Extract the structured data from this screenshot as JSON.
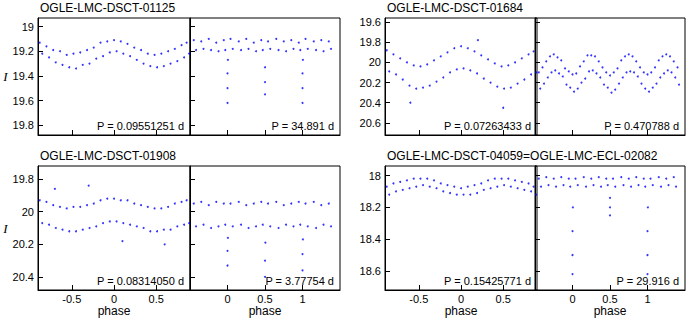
{
  "chart_data": [
    {
      "type": "scatter",
      "title": "OGLE-LMC-DSCT-01125",
      "y_label": "I",
      "color": "#0000ff",
      "marker": "dot",
      "ylim": [
        19.88,
        18.93
      ],
      "yticks": [
        19,
        19.2,
        19.4,
        19.6,
        19.8
      ],
      "plots": [
        {
          "xlim": [
            -0.9,
            0.9
          ],
          "xticks": [
            -0.5,
            0,
            0.5
          ],
          "tick_labels": "y",
          "annotation": "P = 0.09551251 d",
          "x": [
            -0.88,
            -0.85,
            -0.8,
            -0.77,
            -0.72,
            -0.69,
            -0.64,
            -0.61,
            -0.56,
            -0.53,
            -0.48,
            -0.45,
            -0.4,
            -0.37,
            -0.32,
            -0.29,
            -0.24,
            -0.21,
            -0.16,
            -0.13,
            -0.08,
            -0.05,
            0,
            0.03,
            0.08,
            0.11,
            0.16,
            0.19,
            0.24,
            0.27,
            0.32,
            0.35,
            0.4,
            0.43,
            0.48,
            0.51,
            0.56,
            0.59,
            0.64,
            0.67,
            0.72,
            0.75,
            0.8,
            0.83,
            0.86,
            0.89
          ],
          "values": [
            19.13,
            19.22,
            19.16,
            19.25,
            19.19,
            19.29,
            19.2,
            19.31,
            19.23,
            19.33,
            19.22,
            19.34,
            19.21,
            19.31,
            19.19,
            19.3,
            19.17,
            19.26,
            19.13,
            19.24,
            19.12,
            19.21,
            19.11,
            19.2,
            19.12,
            19.22,
            19.14,
            19.24,
            19.17,
            19.27,
            19.19,
            19.3,
            19.22,
            19.32,
            19.23,
            19.33,
            19.22,
            19.32,
            19.2,
            19.3,
            19.18,
            19.28,
            19.15,
            19.25,
            19.13,
            19.22
          ]
        },
        {
          "xlim": [
            -0.5,
            1.5
          ],
          "xticks": [
            0,
            0.5,
            1
          ],
          "tick_labels": false,
          "annotation": "P = 34.891 d",
          "x": [
            -0.45,
            -0.42,
            -0.35,
            -0.32,
            -0.25,
            -0.22,
            -0.15,
            -0.12,
            -0.05,
            -0.03,
            0,
            0,
            0,
            0.005,
            0.04,
            0.07,
            0.15,
            0.18,
            0.25,
            0.28,
            0.35,
            0.38,
            0.45,
            0.47,
            0.5,
            0.5,
            0.5,
            0.54,
            0.57,
            0.65,
            0.68,
            0.75,
            0.78,
            0.85,
            0.88,
            0.95,
            0.97,
            1,
            1,
            1,
            1.005,
            1.04,
            1.07,
            1.15,
            1.18,
            1.25,
            1.28,
            1.35,
            1.38
          ],
          "values": [
            19.11,
            19.19,
            19.12,
            19.18,
            19.1,
            19.19,
            19.13,
            19.2,
            19.11,
            19.19,
            19.62,
            19.5,
            19.38,
            19.27,
            19.1,
            19.18,
            19.12,
            19.19,
            19.1,
            19.18,
            19.13,
            19.2,
            19.11,
            19.19,
            19.55,
            19.45,
            19.33,
            19.12,
            19.18,
            19.1,
            19.19,
            19.12,
            19.2,
            19.11,
            19.18,
            19.13,
            19.19,
            19.62,
            19.5,
            19.38,
            19.27,
            19.1,
            19.18,
            19.12,
            19.19,
            19.11,
            19.2,
            19.12,
            19.18
          ]
        }
      ]
    },
    {
      "type": "scatter",
      "title": "OGLE-LMC-DSCT-01684",
      "color": "#0000ff",
      "marker": "dot",
      "ylim": [
        20.72,
        19.56
      ],
      "yticks": [
        19.6,
        19.8,
        20,
        20.2,
        20.4,
        20.6
      ],
      "plots": [
        {
          "xlim": [
            -0.9,
            0.9
          ],
          "xticks": [
            -0.5,
            0,
            0.5
          ],
          "tick_labels": "y",
          "annotation": "P = 0.07263433 d",
          "x": [
            -0.88,
            -0.85,
            -0.8,
            -0.77,
            -0.72,
            -0.69,
            -0.64,
            -0.61,
            -0.56,
            -0.53,
            -0.48,
            -0.45,
            -0.4,
            -0.37,
            -0.32,
            -0.29,
            -0.24,
            -0.21,
            -0.16,
            -0.13,
            -0.08,
            -0.05,
            0,
            0.03,
            0.08,
            0.11,
            0.16,
            0.19,
            0.24,
            0.27,
            0.32,
            0.35,
            0.4,
            0.43,
            0.48,
            0.51,
            0.56,
            0.59,
            0.64,
            0.67,
            0.72,
            0.75,
            0.8,
            0.83,
            0.86,
            0.89,
            -0.6,
            0.2,
            0.5
          ],
          "values": [
            19.88,
            20.09,
            19.92,
            20.12,
            19.96,
            20.17,
            20,
            20.23,
            20.03,
            20.26,
            20.04,
            20.25,
            20.02,
            20.23,
            19.98,
            20.19,
            19.94,
            20.15,
            19.9,
            20.1,
            19.86,
            20.07,
            19.84,
            20.06,
            19.86,
            20.08,
            19.89,
            20.11,
            19.93,
            20.16,
            19.97,
            20.2,
            20.01,
            20.24,
            20.04,
            20.26,
            20.03,
            20.25,
            20,
            20.21,
            19.96,
            20.17,
            19.92,
            20.12,
            19.89,
            20.1,
            20.4,
            19.78,
            20.45
          ]
        },
        {
          "xlim": [
            -0.5,
            1.5
          ],
          "xticks": [
            0,
            0.5,
            1
          ],
          "tick_labels": false,
          "annotation": "P = 0.470788 d",
          "x": [
            -0.45,
            -0.43,
            -0.4,
            -0.38,
            -0.35,
            -0.33,
            -0.3,
            -0.28,
            -0.25,
            -0.23,
            -0.2,
            -0.18,
            -0.15,
            -0.13,
            -0.1,
            -0.08,
            -0.05,
            -0.03,
            0,
            0.02,
            0.05,
            0.07,
            0.1,
            0.12,
            0.15,
            0.17,
            0.2,
            0.22,
            0.25,
            0.27,
            0.3,
            0.32,
            0.35,
            0.37,
            0.4,
            0.42,
            0.45,
            0.47,
            0.5,
            0.52,
            0.55,
            0.57,
            0.6,
            0.62,
            0.65,
            0.67,
            0.7,
            0.72,
            0.75,
            0.77,
            0.8,
            0.82,
            0.85,
            0.87,
            0.9,
            0.92,
            0.95,
            0.97,
            1,
            1.02,
            1.05,
            1.07,
            1.1,
            1.12,
            1.15,
            1.17,
            1.2,
            1.22,
            1.25,
            1.27,
            1.3,
            1.32,
            1.35,
            1.37,
            1.4,
            1.42
          ],
          "values": [
            20.1,
            20.26,
            20.05,
            20.21,
            19.99,
            20.15,
            19.94,
            20.1,
            19.92,
            20.08,
            19.95,
            20.11,
            19.98,
            20.14,
            20.06,
            20.22,
            20.09,
            20.25,
            20.12,
            20.29,
            20.11,
            20.26,
            20.04,
            20.2,
            19.99,
            20.16,
            19.93,
            20.09,
            19.93,
            20.08,
            19.94,
            20.11,
            19.99,
            20.15,
            20.05,
            20.22,
            20.1,
            20.25,
            20.13,
            20.3,
            20.1,
            20.27,
            20.06,
            20.21,
            19.98,
            20.15,
            19.94,
            20.1,
            19.92,
            20.09,
            19.94,
            20.1,
            19.99,
            20.14,
            20.05,
            20.21,
            20.1,
            20.26,
            20.12,
            20.29,
            20.1,
            20.25,
            20.05,
            20.21,
            19.98,
            20.15,
            19.94,
            20.11,
            19.92,
            20.08,
            19.94,
            20.1,
            19.99,
            20.15,
            20.05,
            20.22
          ]
        }
      ]
    },
    {
      "type": "scatter",
      "title": "OGLE-LMC-DSCT-01908",
      "y_label": "I",
      "x_label": "phase",
      "color": "#0000ff",
      "marker": "dot",
      "ylim": [
        20.48,
        19.72
      ],
      "yticks": [
        19.8,
        20,
        20.2,
        20.4
      ],
      "plots": [
        {
          "xlim": [
            -0.9,
            0.9
          ],
          "xticks": [
            -0.5,
            0,
            0.5
          ],
          "tick_labels": true,
          "annotation": "P = 0.08314050 d",
          "x": [
            -0.88,
            -0.85,
            -0.8,
            -0.77,
            -0.72,
            -0.69,
            -0.64,
            -0.61,
            -0.56,
            -0.53,
            -0.48,
            -0.45,
            -0.4,
            -0.37,
            -0.32,
            -0.29,
            -0.24,
            -0.21,
            -0.16,
            -0.13,
            -0.08,
            -0.05,
            0,
            0.03,
            0.08,
            0.11,
            0.16,
            0.19,
            0.24,
            0.27,
            0.32,
            0.35,
            0.4,
            0.43,
            0.48,
            0.51,
            0.56,
            0.59,
            0.64,
            0.67,
            0.72,
            0.75,
            0.8,
            0.83,
            0.86,
            0.89,
            -0.3,
            0.6,
            0.1,
            -0.7
          ],
          "values": [
            19.93,
            20.07,
            19.94,
            20.08,
            19.96,
            20.1,
            19.97,
            20.11,
            19.98,
            20.12,
            19.97,
            20.12,
            19.97,
            20.11,
            19.96,
            20.1,
            19.95,
            20.09,
            19.93,
            20.07,
            19.92,
            20.06,
            19.92,
            20.06,
            19.93,
            20.07,
            19.93,
            20.08,
            19.95,
            20.09,
            19.96,
            20.1,
            19.97,
            20.12,
            19.98,
            20.12,
            19.98,
            20.11,
            19.97,
            20.11,
            19.95,
            20.09,
            19.94,
            20.08,
            19.93,
            20.07,
            19.84,
            20.2,
            20.18,
            19.86
          ]
        },
        {
          "xlim": [
            -0.5,
            1.5
          ],
          "xticks": [
            0,
            0.5,
            1
          ],
          "tick_labels": "x",
          "annotation": "P = 3.77754 d",
          "x": [
            -0.45,
            -0.42,
            -0.35,
            -0.32,
            -0.25,
            -0.22,
            -0.15,
            -0.12,
            -0.05,
            -0.03,
            0,
            0,
            0.005,
            0.04,
            0.07,
            0.15,
            0.18,
            0.25,
            0.28,
            0.35,
            0.38,
            0.45,
            0.47,
            0.5,
            0.5,
            0.505,
            0.54,
            0.57,
            0.65,
            0.68,
            0.75,
            0.78,
            0.85,
            0.88,
            0.95,
            0.97,
            1,
            1,
            1.005,
            1.04,
            1.07,
            1.15,
            1.18,
            1.25,
            1.28,
            1.35,
            1.38
          ],
          "values": [
            19.95,
            20.09,
            19.94,
            20.08,
            19.96,
            20.1,
            19.94,
            20.09,
            19.95,
            20.08,
            20.33,
            20.24,
            20.16,
            19.95,
            20.09,
            19.94,
            20.08,
            19.96,
            20.1,
            19.95,
            20.09,
            19.94,
            20.08,
            20.4,
            20.3,
            20.19,
            19.95,
            20.09,
            19.94,
            20.1,
            19.96,
            20.08,
            19.95,
            20.09,
            19.94,
            20.08,
            20.36,
            20.26,
            20.17,
            19.95,
            20.09,
            19.94,
            20.1,
            19.96,
            20.08,
            19.95,
            20.09
          ]
        }
      ]
    },
    {
      "type": "scatter",
      "title": "OGLE-LMC-DSCT-04059=OGLE-LMC-ECL-02082",
      "x_label": "phase",
      "color": "#0000ff",
      "marker": "dot",
      "ylim": [
        18.72,
        17.94
      ],
      "yticks": [
        18,
        18.2,
        18.4,
        18.6
      ],
      "plots": [
        {
          "xlim": [
            -0.9,
            0.9
          ],
          "xticks": [
            -0.5,
            0,
            0.5
          ],
          "tick_labels": true,
          "annotation": "P = 0.15425771 d",
          "x": [
            -0.88,
            -0.85,
            -0.8,
            -0.77,
            -0.72,
            -0.69,
            -0.64,
            -0.61,
            -0.56,
            -0.53,
            -0.48,
            -0.45,
            -0.4,
            -0.37,
            -0.32,
            -0.29,
            -0.24,
            -0.21,
            -0.16,
            -0.13,
            -0.08,
            -0.05,
            0,
            0.03,
            0.08,
            0.11,
            0.16,
            0.19,
            0.24,
            0.27,
            0.32,
            0.35,
            0.4,
            0.43,
            0.48,
            0.51,
            0.56,
            0.59,
            0.64,
            0.67,
            0.72,
            0.75,
            0.8,
            0.83,
            0.86,
            0.89
          ],
          "values": [
            18.07,
            18.12,
            18.05,
            18.1,
            18.04,
            18.09,
            18.03,
            18.08,
            18.02,
            18.07,
            18.02,
            18.06,
            18.02,
            18.07,
            18.03,
            18.08,
            18.05,
            18.1,
            18.06,
            18.11,
            18.07,
            18.12,
            18.08,
            18.12,
            18.07,
            18.12,
            18.06,
            18.11,
            18.05,
            18.09,
            18.03,
            18.08,
            18.02,
            18.07,
            18.02,
            18.06,
            18.02,
            18.07,
            18.03,
            18.08,
            18.04,
            18.09,
            18.05,
            18.1,
            18.07,
            18.12
          ]
        },
        {
          "xlim": [
            -0.5,
            1.5
          ],
          "xticks": [
            0,
            0.5,
            1
          ],
          "tick_labels": "x",
          "annotation": "P = 29.916 d",
          "x": [
            -0.45,
            -0.42,
            -0.35,
            -0.32,
            -0.25,
            -0.22,
            -0.15,
            -0.12,
            -0.05,
            -0.03,
            0,
            0,
            0,
            0.005,
            0.04,
            0.07,
            0.15,
            0.18,
            0.25,
            0.28,
            0.35,
            0.38,
            0.45,
            0.47,
            0.5,
            0.5,
            0.5,
            0.54,
            0.57,
            0.65,
            0.68,
            0.75,
            0.78,
            0.85,
            0.88,
            0.95,
            0.97,
            1,
            1,
            1,
            1.005,
            1.04,
            1.07,
            1.15,
            1.18,
            1.25,
            1.28,
            1.35,
            1.38
          ],
          "values": [
            18.02,
            18.07,
            18.01,
            18.06,
            18.02,
            18.07,
            18.01,
            18.06,
            18.02,
            18.07,
            18.62,
            18.5,
            18.35,
            18.2,
            18.02,
            18.06,
            18.01,
            18.07,
            18.02,
            18.06,
            18.01,
            18.07,
            18.02,
            18.06,
            18.25,
            18.2,
            18.14,
            18.02,
            18.07,
            18.01,
            18.06,
            18.02,
            18.07,
            18.01,
            18.06,
            18.02,
            18.07,
            18.62,
            18.5,
            18.35,
            18.2,
            18.02,
            18.06,
            18.01,
            18.07,
            18.02,
            18.06,
            18.01,
            18.07
          ]
        }
      ]
    }
  ]
}
